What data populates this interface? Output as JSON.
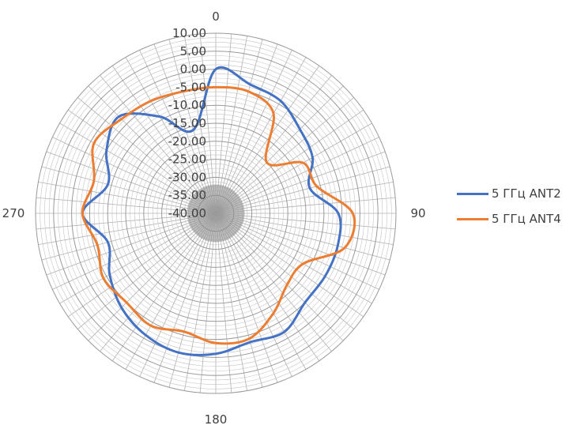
{
  "chart_data": {
    "type": "polar-line",
    "angular_labels": [
      "0",
      "90",
      "180",
      "270"
    ],
    "radial_ticks": [
      "10.00",
      "5.00",
      "0.00",
      "-5.00",
      "-10.00",
      "-15.00",
      "-20.00",
      "-25.00",
      "-30.00",
      "-35.00",
      "-40.00"
    ],
    "rlim": [
      -40,
      10
    ],
    "angular_grid_step_deg": 5,
    "grid": true,
    "legend_position": "right",
    "theta_deg": [
      0,
      15,
      30,
      45,
      60,
      75,
      90,
      105,
      120,
      135,
      150,
      165,
      180,
      195,
      210,
      225,
      240,
      255,
      270,
      285,
      300,
      315,
      330,
      345
    ],
    "series": [
      {
        "name": "5 ГГц ANT2",
        "color": "#4472C4",
        "values": [
          0,
          -3,
          -4,
          -7,
          -9,
          -13,
          -6,
          -5,
          -5,
          -5,
          -2,
          -3,
          -1,
          0,
          -1,
          -3,
          -6,
          -9,
          -3,
          -9,
          -5,
          -2,
          -9,
          -16
        ]
      },
      {
        "name": "5 ГГц ANT4",
        "color": "#ED7D31",
        "values": [
          -5,
          -5,
          -8,
          -20,
          -12,
          -11,
          -2,
          -3,
          -12,
          -12,
          -8,
          -4,
          -4,
          -6,
          -4,
          -5,
          -4,
          -6,
          -3,
          -5,
          -1,
          -3,
          -4,
          -5
        ]
      }
    ]
  },
  "legend": {
    "items": [
      {
        "label": "5 ГГц ANT2",
        "color": "#4472C4"
      },
      {
        "label": "5 ГГц ANT4",
        "color": "#ED7D31"
      }
    ]
  }
}
